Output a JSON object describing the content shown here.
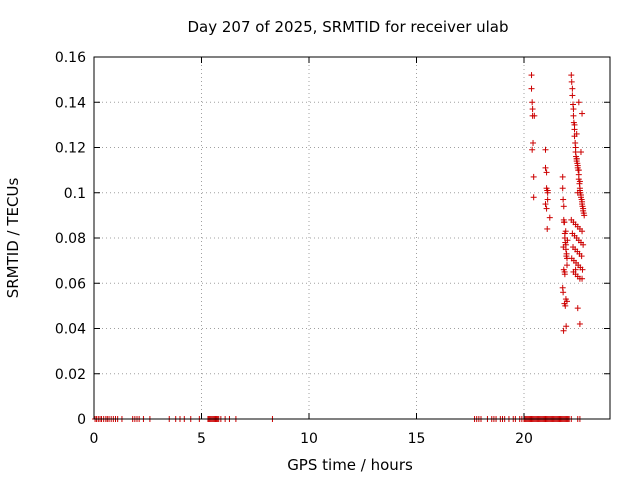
{
  "chart_data": {
    "type": "scatter",
    "title": "Day 207 of 2025, SRMTID for receiver ulab",
    "xlabel": "GPS time / hours",
    "ylabel": "SRMTID / TECUs",
    "xlim": [
      0,
      24
    ],
    "ylim": [
      0,
      0.16
    ],
    "xticks": [
      0,
      5,
      10,
      15,
      20
    ],
    "xtick_labels": [
      "0",
      "5",
      "10",
      "15",
      "20"
    ],
    "yticks": [
      0,
      0.02,
      0.04,
      0.06,
      0.08,
      0.1,
      0.12,
      0.14,
      0.16
    ],
    "ytick_labels": [
      "0",
      "0.02",
      "0.04",
      "0.06",
      "0.08",
      "0.1",
      "0.12",
      "0.14",
      "0.16"
    ],
    "grid": true,
    "marker": "plus",
    "color": "#cc0000",
    "series": [
      {
        "x": [
          0.05,
          0.12,
          0.2,
          0.28,
          0.35,
          0.45,
          0.55,
          0.62,
          0.7,
          0.8,
          0.9,
          1.0,
          1.1,
          1.3,
          1.8,
          1.9,
          2.0,
          2.1,
          2.3,
          2.6,
          3.5,
          3.8,
          4.0,
          4.2,
          4.5,
          4.9,
          5.3,
          5.35,
          5.4,
          5.45,
          5.5,
          5.55,
          5.6,
          5.65,
          5.7,
          5.75,
          5.8,
          5.9,
          6.1,
          6.3,
          6.6,
          8.3,
          17.7,
          17.8,
          17.9,
          18.0,
          18.3,
          18.5,
          18.6,
          18.7,
          18.9,
          19.0,
          19.1,
          19.3,
          19.5,
          19.6,
          19.8,
          19.9,
          20.0,
          20.05,
          20.1,
          20.15,
          20.2,
          20.25,
          20.3,
          20.35,
          20.4,
          20.45,
          20.5,
          20.55,
          20.6,
          20.65,
          20.7,
          20.75,
          20.8,
          20.85,
          20.9,
          20.95,
          21.0,
          21.05,
          21.1,
          21.15,
          21.2,
          21.25,
          21.3,
          21.35,
          21.4,
          21.45,
          21.5,
          21.55,
          21.6,
          21.65,
          21.7,
          21.75,
          21.8,
          21.85,
          21.9,
          21.95,
          22.0,
          22.05,
          22.1,
          22.2,
          22.5,
          22.6,
          20.35,
          20.35,
          20.38,
          20.4,
          20.4,
          20.42,
          20.38,
          20.45,
          20.45,
          20.48,
          21.0,
          21.0,
          21.05,
          21.05,
          21.08,
          21.1,
          21.1,
          21.0,
          21.05,
          21.1,
          21.08,
          21.2,
          21.8,
          21.8,
          21.82,
          21.85,
          21.85,
          21.88,
          21.9,
          21.9,
          21.92,
          21.95,
          21.95,
          21.98,
          22.0,
          22.0,
          21.85,
          21.9,
          21.8,
          21.82,
          21.95,
          22.0,
          21.88,
          21.92,
          21.96,
          21.84,
          21.86,
          21.94,
          22.02,
          21.83,
          21.97,
          21.89,
          22.2,
          22.22,
          22.25,
          22.25,
          22.28,
          22.3,
          22.3,
          22.32,
          22.35,
          22.35,
          22.38,
          22.4,
          22.4,
          22.42,
          22.45,
          22.45,
          22.48,
          22.5,
          22.5,
          22.52,
          22.55,
          22.55,
          22.58,
          22.6,
          22.6,
          22.62,
          22.65,
          22.65,
          22.68,
          22.7,
          22.7,
          22.72,
          22.75,
          22.75,
          22.78,
          22.8,
          22.2,
          22.3,
          22.4,
          22.5,
          22.6,
          22.7,
          22.25,
          22.35,
          22.45,
          22.55,
          22.65,
          22.75,
          22.28,
          22.38,
          22.48,
          22.58,
          22.68,
          22.22,
          22.32,
          22.42,
          22.52,
          22.62,
          22.72,
          22.3,
          22.4,
          22.5,
          22.6,
          22.7,
          22.35,
          22.45,
          22.55,
          22.65,
          22.5,
          22.6,
          22.7,
          22.4,
          22.45,
          22.55,
          22.6,
          22.5
        ],
        "y": [
          0,
          0,
          0,
          0,
          0,
          0,
          0,
          0,
          0,
          0,
          0,
          0,
          0,
          0,
          0,
          0,
          0,
          0,
          0,
          0,
          0,
          0,
          0,
          0,
          0,
          0,
          0,
          0,
          0,
          0,
          0,
          0,
          0,
          0,
          0,
          0,
          0,
          0,
          0,
          0,
          0,
          0,
          0,
          0,
          0,
          0,
          0,
          0,
          0,
          0,
          0,
          0,
          0,
          0,
          0,
          0,
          0,
          0,
          0,
          0,
          0,
          0,
          0,
          0,
          0,
          0,
          0,
          0,
          0,
          0,
          0,
          0,
          0,
          0,
          0,
          0,
          0,
          0,
          0,
          0,
          0,
          0,
          0,
          0,
          0,
          0,
          0,
          0,
          0,
          0,
          0,
          0,
          0,
          0,
          0,
          0,
          0,
          0,
          0,
          0,
          0,
          0,
          0,
          0,
          0.152,
          0.146,
          0.14,
          0.137,
          0.134,
          0.122,
          0.119,
          0.107,
          0.098,
          0.134,
          0.119,
          0.111,
          0.109,
          0.102,
          0.101,
          0.1,
          0.097,
          0.095,
          0.093,
          0.101,
          0.084,
          0.089,
          0.107,
          0.102,
          0.097,
          0.094,
          0.088,
          0.087,
          0.082,
          0.08,
          0.078,
          0.077,
          0.075,
          0.073,
          0.071,
          0.068,
          0.066,
          0.064,
          0.058,
          0.056,
          0.053,
          0.052,
          0.051,
          0.05,
          0.041,
          0.039,
          0.087,
          0.083,
          0.079,
          0.076,
          0.072,
          0.065,
          0.152,
          0.149,
          0.146,
          0.143,
          0.139,
          0.137,
          0.134,
          0.131,
          0.128,
          0.125,
          0.122,
          0.12,
          0.118,
          0.116,
          0.115,
          0.114,
          0.113,
          0.112,
          0.111,
          0.11,
          0.108,
          0.106,
          0.104,
          0.102,
          0.101,
          0.1,
          0.099,
          0.098,
          0.097,
          0.096,
          0.095,
          0.094,
          0.093,
          0.092,
          0.091,
          0.09,
          0.088,
          0.087,
          0.086,
          0.085,
          0.084,
          0.083,
          0.082,
          0.081,
          0.08,
          0.079,
          0.078,
          0.077,
          0.076,
          0.075,
          0.074,
          0.073,
          0.072,
          0.071,
          0.07,
          0.069,
          0.068,
          0.067,
          0.066,
          0.065,
          0.064,
          0.063,
          0.062,
          0.135,
          0.13,
          0.126,
          0.14,
          0.118,
          0.049,
          0.042,
          0.062,
          0.066,
          0.115,
          0.11,
          0.105,
          0.1
        ]
      }
    ]
  }
}
